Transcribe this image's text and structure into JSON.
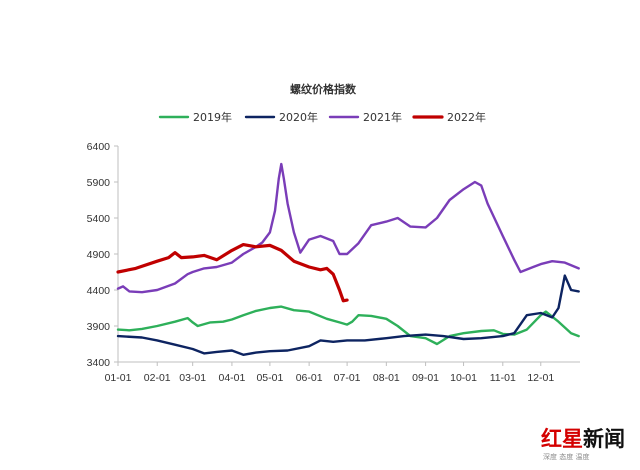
{
  "chart_data": {
    "type": "line",
    "title": "螺纹价格指数",
    "xlabel": "",
    "ylabel": "",
    "x_ticks": [
      "01-01",
      "02-01",
      "03-01",
      "04-01",
      "05-01",
      "06-01",
      "07-01",
      "08-01",
      "09-01",
      "10-01",
      "11-01",
      "12-01"
    ],
    "ylim": [
      3400,
      6400
    ],
    "y_ticks": [
      3400,
      3900,
      4400,
      4900,
      5400,
      5900,
      6400
    ],
    "grid": false,
    "legend_position": "top",
    "series": [
      {
        "name": "2019年",
        "color": "#2eb05a",
        "points": [
          [
            "01-01",
            3850
          ],
          [
            "01-10",
            3840
          ],
          [
            "01-20",
            3860
          ],
          [
            "02-01",
            3900
          ],
          [
            "02-15",
            3960
          ],
          [
            "02-25",
            4010
          ],
          [
            "03-01",
            3950
          ],
          [
            "03-05",
            3900
          ],
          [
            "03-15",
            3950
          ],
          [
            "03-25",
            3960
          ],
          [
            "04-01",
            3990
          ],
          [
            "04-10",
            4050
          ],
          [
            "04-20",
            4110
          ],
          [
            "05-01",
            4150
          ],
          [
            "05-10",
            4170
          ],
          [
            "05-20",
            4120
          ],
          [
            "06-01",
            4100
          ],
          [
            "06-15",
            4000
          ],
          [
            "06-25",
            3950
          ],
          [
            "07-01",
            3920
          ],
          [
            "07-05",
            3960
          ],
          [
            "07-10",
            4050
          ],
          [
            "07-20",
            4040
          ],
          [
            "08-01",
            4000
          ],
          [
            "08-10",
            3900
          ],
          [
            "08-20",
            3760
          ],
          [
            "09-01",
            3730
          ],
          [
            "09-10",
            3650
          ],
          [
            "09-20",
            3760
          ],
          [
            "10-01",
            3800
          ],
          [
            "10-15",
            3830
          ],
          [
            "10-25",
            3840
          ],
          [
            "11-01",
            3790
          ],
          [
            "11-10",
            3780
          ],
          [
            "11-20",
            3850
          ],
          [
            "12-01",
            4050
          ],
          [
            "12-05",
            4100
          ],
          [
            "12-15",
            3960
          ],
          [
            "12-25",
            3800
          ],
          [
            "12-31",
            3760
          ]
        ]
      },
      {
        "name": "2020年",
        "color": "#0d2461",
        "points": [
          [
            "01-01",
            3760
          ],
          [
            "01-20",
            3740
          ],
          [
            "02-01",
            3700
          ],
          [
            "02-15",
            3640
          ],
          [
            "03-01",
            3580
          ],
          [
            "03-10",
            3520
          ],
          [
            "03-20",
            3540
          ],
          [
            "04-01",
            3560
          ],
          [
            "04-10",
            3500
          ],
          [
            "04-20",
            3530
          ],
          [
            "05-01",
            3550
          ],
          [
            "05-15",
            3560
          ],
          [
            "06-01",
            3620
          ],
          [
            "06-10",
            3700
          ],
          [
            "06-20",
            3680
          ],
          [
            "07-01",
            3700
          ],
          [
            "07-15",
            3700
          ],
          [
            "08-01",
            3730
          ],
          [
            "08-15",
            3760
          ],
          [
            "09-01",
            3780
          ],
          [
            "09-15",
            3760
          ],
          [
            "10-01",
            3720
          ],
          [
            "10-15",
            3730
          ],
          [
            "11-01",
            3760
          ],
          [
            "11-10",
            3800
          ],
          [
            "11-20",
            4050
          ],
          [
            "12-01",
            4080
          ],
          [
            "12-10",
            4020
          ],
          [
            "12-15",
            4150
          ],
          [
            "12-20",
            4600
          ],
          [
            "12-25",
            4400
          ],
          [
            "12-31",
            4380
          ]
        ]
      },
      {
        "name": "2021年",
        "color": "#7a3db8",
        "points": [
          [
            "01-01",
            4420
          ],
          [
            "01-05",
            4450
          ],
          [
            "01-10",
            4380
          ],
          [
            "01-20",
            4370
          ],
          [
            "02-01",
            4400
          ],
          [
            "02-15",
            4490
          ],
          [
            "02-25",
            4620
          ],
          [
            "03-01",
            4650
          ],
          [
            "03-10",
            4700
          ],
          [
            "03-20",
            4720
          ],
          [
            "04-01",
            4780
          ],
          [
            "04-10",
            4900
          ],
          [
            "04-20",
            5000
          ],
          [
            "04-25",
            5060
          ],
          [
            "05-01",
            5200
          ],
          [
            "05-05",
            5500
          ],
          [
            "05-08",
            5950
          ],
          [
            "05-10",
            6150
          ],
          [
            "05-12",
            5950
          ],
          [
            "05-15",
            5600
          ],
          [
            "05-20",
            5200
          ],
          [
            "05-25",
            4920
          ],
          [
            "06-01",
            5100
          ],
          [
            "06-10",
            5150
          ],
          [
            "06-20",
            5080
          ],
          [
            "06-25",
            4900
          ],
          [
            "07-01",
            4900
          ],
          [
            "07-10",
            5050
          ],
          [
            "07-20",
            5300
          ],
          [
            "08-01",
            5350
          ],
          [
            "08-10",
            5400
          ],
          [
            "08-20",
            5280
          ],
          [
            "09-01",
            5270
          ],
          [
            "09-10",
            5400
          ],
          [
            "09-20",
            5650
          ],
          [
            "10-01",
            5800
          ],
          [
            "10-10",
            5900
          ],
          [
            "10-15",
            5850
          ],
          [
            "10-20",
            5600
          ],
          [
            "11-01",
            5150
          ],
          [
            "11-10",
            4820
          ],
          [
            "11-15",
            4650
          ],
          [
            "11-25",
            4720
          ],
          [
            "12-01",
            4760
          ],
          [
            "12-10",
            4800
          ],
          [
            "12-20",
            4780
          ],
          [
            "12-31",
            4700
          ]
        ]
      },
      {
        "name": "2022年",
        "color": "#c00000",
        "points": [
          [
            "01-01",
            4650
          ],
          [
            "01-15",
            4700
          ],
          [
            "02-01",
            4800
          ],
          [
            "02-10",
            4850
          ],
          [
            "02-15",
            4920
          ],
          [
            "02-20",
            4850
          ],
          [
            "03-01",
            4860
          ],
          [
            "03-10",
            4880
          ],
          [
            "03-20",
            4820
          ],
          [
            "04-01",
            4950
          ],
          [
            "04-10",
            5030
          ],
          [
            "04-20",
            5000
          ],
          [
            "05-01",
            5020
          ],
          [
            "05-10",
            4950
          ],
          [
            "05-20",
            4800
          ],
          [
            "06-01",
            4720
          ],
          [
            "06-10",
            4680
          ],
          [
            "06-15",
            4700
          ],
          [
            "06-20",
            4620
          ],
          [
            "06-25",
            4400
          ],
          [
            "06-28",
            4250
          ],
          [
            "07-01",
            4260
          ]
        ]
      }
    ]
  },
  "watermark": {
    "text": "红星新闻",
    "subtitle": "深度 态度 温度"
  }
}
